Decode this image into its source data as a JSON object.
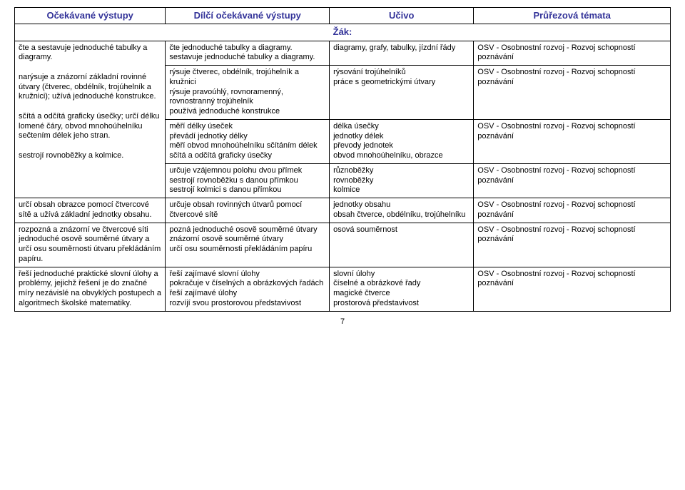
{
  "headers": {
    "col1": "Očekávané výstupy",
    "col2": "Dílčí očekávané výstupy",
    "col3": "Učivo",
    "col4": "Průřezová témata"
  },
  "zak_label": "Žák:",
  "rows": [
    {
      "c1": "čte a sestavuje jednoduché tabulky a diagramy.",
      "c2": "čte  jednoduché tabulky a diagramy.\n sestavuje jednoduché tabulky a diagramy.",
      "c3": "diagramy, grafy, tabulky, jízdní řády",
      "c4": "OSV - Osobnostní rozvoj - Rozvoj schopností poznávání"
    },
    {
      "c1": "narýsuje a znázorní základní rovinné útvary (čtverec, obdélník, trojúhelník a kružnici); užívá jednoduché konstrukce.",
      "c2": "rýsuje čtverec, obdélník, trojúhelník a kružnici\nrýsuje pravoúhlý, rovnoramenný, rovnostranný trojúhelník\npoužívá jednoduché konstrukce",
      "c3": "rýsování trojúhelníků\npráce s geometrickými útvary",
      "c4": "OSV - Osobnostní rozvoj - Rozvoj schopností poznávání"
    },
    {
      "c1": "sčítá a odčítá graficky úsečky; určí délku lomené čáry, obvod mnohoúhelníku sečtením délek jeho stran.",
      "c2": "měří délky úseček\npřevádí jednotky délky\nměří obvod mnohoúhelníku sčítáním délek\nsčítá a odčítá graficky úsečky",
      "c3": "délka úsečky\njednotky délek\npřevody jednotek\nobvod mnohoúhelníku, obrazce",
      "c4": "OSV - Osobnostní rozvoj - Rozvoj schopností poznávání"
    },
    {
      "c1": "sestrojí rovnoběžky a kolmice.",
      "c2": "určuje vzájemnou polohu dvou přímek\nsestrojí rovnoběžku s danou přímkou\nsestrojí kolmici s danou přímkou",
      "c3": "různoběžky\nrovnoběžky\nkolmice",
      "c4": "OSV - Osobnostní rozvoj - Rozvoj schopností poznávání"
    },
    {
      "c1": "určí obsah obrazce pomocí čtvercové sítě a užívá základní jednotky obsahu.",
      "c2": "určuje obsah rovinných útvarů pomocí čtvercové sítě",
      "c3": "jednotky obsahu\nobsah čtverce, obdélníku, trojúhelníku",
      "c4": "OSV - Osobnostní rozvoj - Rozvoj schopností poznávání"
    },
    {
      "c1": "rozpozná a znázorní ve čtvercové síti jednoduché osově souměrné útvary a určí osu souměrnosti útvaru překládáním papíru.",
      "c2": "pozná jednoduché osově souměrné útvary\nznázorní osově souměrné útvary\nurčí osu souměrnosti překládáním papíru",
      "c3": "osová souměrnost",
      "c4": "OSV - Osobnostní rozvoj - Rozvoj schopností poznávání"
    },
    {
      "c1": "řeší jednoduché praktické slovní úlohy a problémy, jejichž řešení je do značné míry nezávislé na obvyklých postupech a algoritmech školské matematiky.",
      "c2": "řeší zajímavé slovní úlohy\npokračuje v číselných a obrázkových řadách\nřeší zajímavé úlohy\nrozvíjí svou prostorovou představivost",
      "c3": "slovní úlohy\nčíselné a obrázkové řady\nmagické čtverce\nprostorová představivost",
      "c4": "OSV - Osobnostní rozvoj - Rozvoj schopností poznávání"
    }
  ],
  "page_number": "7",
  "colors": {
    "header_text": "#333399",
    "border": "#000000",
    "background": "#ffffff"
  },
  "merge": {
    "col1_groups": [
      4,
      1,
      1,
      1
    ],
    "col1_empty_rows": 1
  },
  "font": {
    "body_size": 11,
    "header_size": 13
  }
}
